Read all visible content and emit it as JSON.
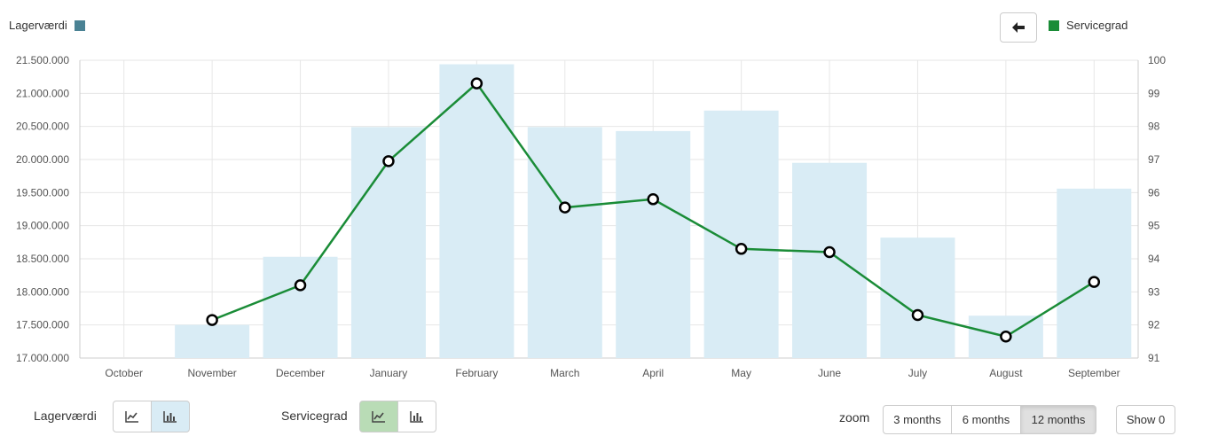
{
  "legend": {
    "left_label": "Lagerværdi",
    "left_color": "#4a8294",
    "right_label": "Servicegrad",
    "right_color": "#1a8c37"
  },
  "back_button": {
    "icon": "arrow-left-icon"
  },
  "chart_data": {
    "type": "bar+line",
    "categories": [
      "October",
      "November",
      "December",
      "January",
      "February",
      "March",
      "April",
      "May",
      "June",
      "July",
      "August",
      "September"
    ],
    "series": [
      {
        "name": "Lagerværdi",
        "type": "bar",
        "axis": "left",
        "color": "#d9ecf5",
        "values": [
          null,
          17500000,
          18530000,
          20490000,
          21440000,
          20490000,
          20430000,
          20740000,
          19950000,
          18820000,
          17640000,
          19560000
        ]
      },
      {
        "name": "Servicegrad",
        "type": "line",
        "axis": "right",
        "color": "#1a8c37",
        "values": [
          null,
          92.15,
          93.2,
          96.95,
          99.3,
          95.55,
          95.8,
          94.3,
          94.2,
          92.3,
          91.65,
          93.3
        ]
      }
    ],
    "y_left": {
      "min": 17000000,
      "max": 21500000,
      "step": 500000,
      "tick_labels": [
        "17.000.000",
        "17.500.000",
        "18.000.000",
        "18.500.000",
        "19.000.000",
        "19.500.000",
        "20.000.000",
        "20.500.000",
        "21.000.000",
        "21.500.000"
      ]
    },
    "y_right": {
      "min": 91,
      "max": 100,
      "step": 1,
      "tick_labels": [
        "91",
        "92",
        "93",
        "94",
        "95",
        "96",
        "97",
        "98",
        "99",
        "100"
      ]
    },
    "grid": true,
    "legend_position": "top"
  },
  "controls": {
    "lager_label": "Lagerværdi",
    "service_label": "Servicegrad",
    "line_icon": "line-chart-icon",
    "bar_icon": "bar-chart-icon",
    "zoom_label": "zoom",
    "zoom_options": [
      "3 months",
      "6 months",
      "12 months"
    ],
    "zoom_selected": "12 months",
    "show_label": "Show 0"
  }
}
